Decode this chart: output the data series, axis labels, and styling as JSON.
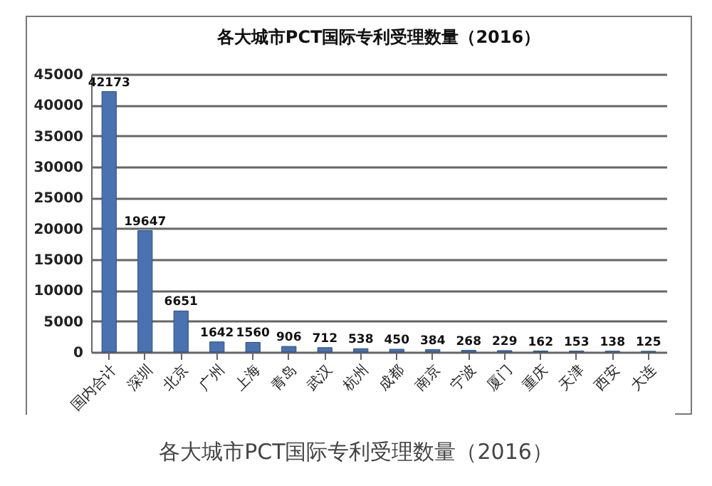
{
  "chart_data": {
    "type": "bar",
    "title": "各大城市PCT国际专利受理数量（2016）",
    "categories": [
      "国内合计",
      "深圳",
      "北京",
      "广州",
      "上海",
      "青岛",
      "武汉",
      "杭州",
      "成都",
      "南京",
      "宁波",
      "厦门",
      "重庆",
      "天津",
      "西安",
      "大连"
    ],
    "values": [
      42173,
      19647,
      6651,
      1642,
      1560,
      906,
      712,
      538,
      450,
      384,
      268,
      229,
      162,
      153,
      138,
      125
    ],
    "color": "#4a72b0",
    "ylim": [
      0,
      45000
    ],
    "yticks": [
      0,
      5000,
      10000,
      15000,
      20000,
      25000,
      30000,
      35000,
      40000,
      45000
    ],
    "grid": "y",
    "data_labels": true,
    "annotations": [
      "各大城市PCT国际专利受理数量（2016）"
    ]
  }
}
